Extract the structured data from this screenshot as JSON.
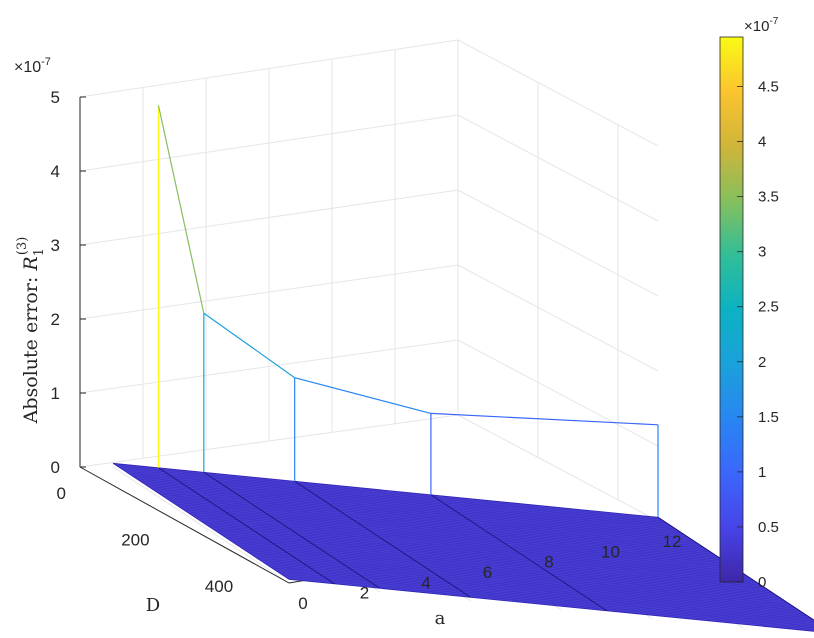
{
  "chart_data": {
    "type": "surface3d",
    "zlabel_prefix": "Absolute error: ",
    "zlabel_math": "R",
    "zlabel_sub": "1",
    "zlabel_sup": "(3)",
    "xlabel": "a",
    "ylabel": "D",
    "zlim": [
      0,
      5e-07
    ],
    "z_exponent_label": "×10",
    "z_exponent_power": "-7",
    "x_ticks": [
      {
        "value": 0,
        "label": "0"
      },
      {
        "value": 2,
        "label": "2"
      },
      {
        "value": 4,
        "label": "4"
      },
      {
        "value": 6,
        "label": "6"
      },
      {
        "value": 8,
        "label": "8"
      },
      {
        "value": 10,
        "label": "10"
      },
      {
        "value": 12,
        "label": "12"
      }
    ],
    "y_ticks": [
      {
        "value": 0,
        "label": "0"
      },
      {
        "value": 200,
        "label": "200"
      },
      {
        "value": 400,
        "label": "400"
      }
    ],
    "z_ticks": [
      {
        "value": 0,
        "label": "0"
      },
      {
        "value": 1,
        "label": "1"
      },
      {
        "value": 2,
        "label": "2"
      },
      {
        "value": 3,
        "label": "3"
      },
      {
        "value": 4,
        "label": "4"
      },
      {
        "value": 5,
        "label": "5"
      }
    ],
    "edge_curve": {
      "note_units": "z in units of 1e-7, taken along D = 0",
      "a": [
        1,
        2,
        4,
        7,
        12
      ],
      "z": [
        4.95,
        2.2,
        1.45,
        1.15,
        1.3
      ]
    },
    "surface_level": 0.05,
    "colorbar": {
      "colormap": "parula",
      "min": 0,
      "max": 4.95,
      "exponent_label": "×10",
      "exponent_power": "-7",
      "ticks": [
        {
          "value": 0,
          "label": "0"
        },
        {
          "value": 0.5,
          "label": "0.5"
        },
        {
          "value": 1,
          "label": "1"
        },
        {
          "value": 1.5,
          "label": "1.5"
        },
        {
          "value": 2,
          "label": "2"
        },
        {
          "value": 2.5,
          "label": "2.5"
        },
        {
          "value": 3,
          "label": "3"
        },
        {
          "value": 3.5,
          "label": "3.5"
        },
        {
          "value": 4,
          "label": "4"
        },
        {
          "value": 4.5,
          "label": "4.5"
        }
      ]
    },
    "grid": true,
    "legend": "none"
  }
}
